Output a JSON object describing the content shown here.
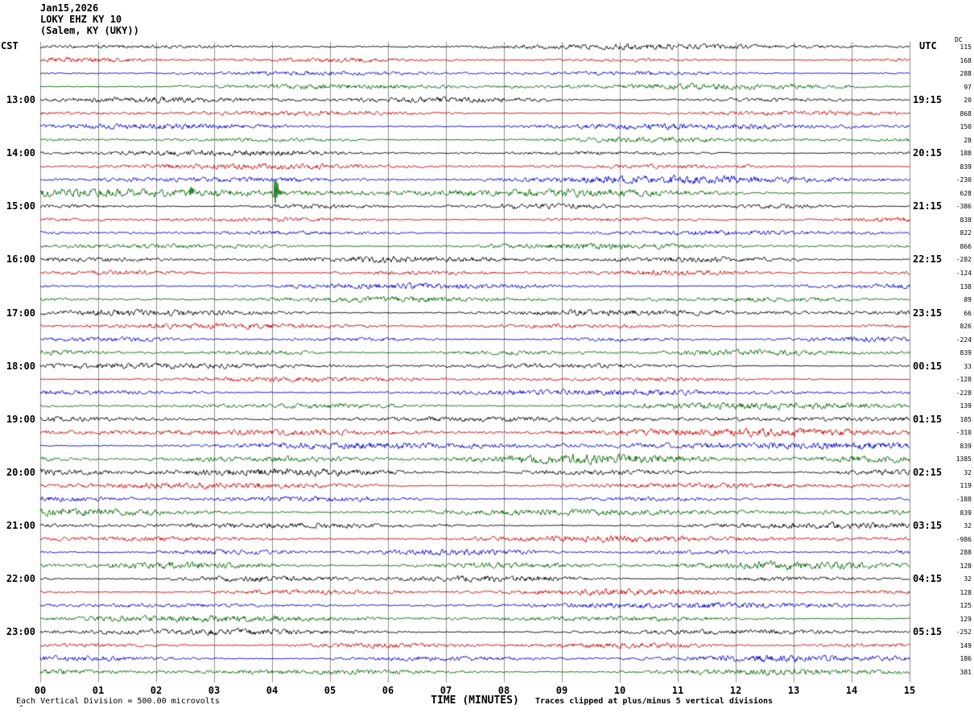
{
  "header": {
    "date": "Jan15,2026",
    "station": "LOKY EHZ KY 10",
    "location": "(Salem, KY (UKY))"
  },
  "axes": {
    "left_timezone": "CST",
    "right_timezone": "UTC",
    "x_axis_label": "TIME (MINUTES)",
    "x_ticks": [
      "00",
      "01",
      "02",
      "03",
      "04",
      "05",
      "06",
      "07",
      "08",
      "09",
      "10",
      "11",
      "12",
      "13",
      "14",
      "15"
    ],
    "dc_column_header": "DC"
  },
  "footer": {
    "mark": "^",
    "scale_note": "Each Vertical Division =  500.00 microvolts",
    "clip_note": "Traces clipped at plus/minus 5 vertical divisions"
  },
  "chart_data": {
    "type": "line",
    "title": "LOKY EHZ KY 10 (Salem, KY (UKY)) helicorder record Jan15,2026",
    "x_range_minutes": [
      0,
      15
    ],
    "minutes_per_line": 15,
    "lines_per_hour": 4,
    "num_rows": 48,
    "vertical_division_microvolts": 500.0,
    "clip_divisions": 5,
    "trace_color_cycle": [
      "#000000",
      "#cc0000",
      "#0000cc",
      "#006600"
    ],
    "grid_color": "#8f8f8f",
    "hour_labels": [
      {
        "row": 4,
        "cst": "13:00",
        "utc": "19:15"
      },
      {
        "row": 8,
        "cst": "14:00",
        "utc": "20:15"
      },
      {
        "row": 12,
        "cst": "15:00",
        "utc": "21:15"
      },
      {
        "row": 16,
        "cst": "16:00",
        "utc": "22:15"
      },
      {
        "row": 20,
        "cst": "17:00",
        "utc": "23:15"
      },
      {
        "row": 24,
        "cst": "18:00",
        "utc": "00:15"
      },
      {
        "row": 28,
        "cst": "19:00",
        "utc": "01:15"
      },
      {
        "row": 32,
        "cst": "20:00",
        "utc": "02:15"
      },
      {
        "row": 36,
        "cst": "21:00",
        "utc": "03:15"
      },
      {
        "row": 40,
        "cst": "22:00",
        "utc": "04:15"
      },
      {
        "row": 44,
        "cst": "23:00",
        "utc": "05:15"
      }
    ],
    "dc_values": [
      115,
      168,
      288,
      97,
      20,
      868,
      150,
      28,
      188,
      839,
      -230,
      628,
      -386,
      838,
      822,
      866,
      -282,
      -124,
      138,
      89,
      66,
      826,
      -224,
      839,
      33,
      -128,
      -228,
      139,
      185,
      -310,
      839,
      1385,
      32,
      119,
      -188,
      839,
      32,
      -986,
      288,
      128,
      32,
      128,
      125,
      129,
      -252,
      149,
      186,
      381
    ],
    "row_noise_amplitude": [
      1.2,
      1.1,
      1.0,
      1.3,
      1.4,
      1.2,
      1.5,
      1.2,
      1.3,
      1.2,
      1.8,
      2.0,
      1.2,
      1.1,
      1.2,
      1.3,
      1.4,
      1.2,
      1.3,
      1.2,
      1.5,
      1.3,
      1.2,
      1.4,
      1.3,
      1.2,
      1.4,
      1.6,
      1.5,
      1.9,
      1.7,
      2.2,
      1.8,
      1.5,
      1.4,
      1.7,
      1.6,
      1.5,
      1.4,
      1.8,
      1.5,
      1.4,
      1.3,
      1.5,
      1.4,
      1.3,
      1.6,
      1.5
    ],
    "events": [
      {
        "row": 11,
        "minute": 4.03,
        "peak_divisions": 1.1,
        "description": "impulsive spike on 14:45 CST green trace"
      },
      {
        "row": 11,
        "minute": 2.55,
        "peak_divisions": 0.35,
        "description": "small precursor wiggle on same trace"
      }
    ]
  }
}
